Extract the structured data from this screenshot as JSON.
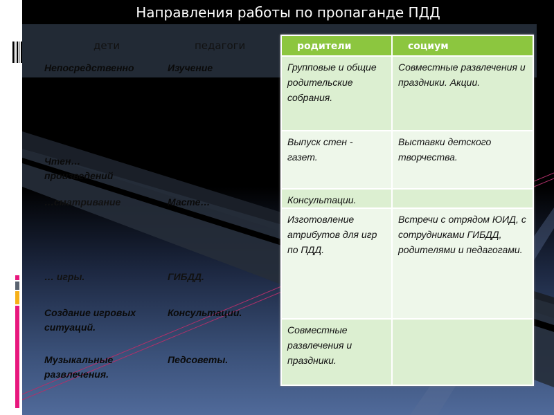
{
  "title": "Направления работы по пропаганде ПДД",
  "left_headers": [
    "дети",
    "педагоги"
  ],
  "left_rows": [
    {
      "children": "Непосредственно",
      "teachers": "Изучение"
    },
    {
      "children": "Чтен… произведений",
      "teachers": ""
    },
    {
      "children": "…сматривание",
      "teachers": "Масте…"
    },
    {
      "children": "… игры.",
      "teachers": "ГИБДД."
    },
    {
      "children": "Создание игровых ситуаций.",
      "teachers": "Консультации."
    },
    {
      "children": "Музыкальные развлечения.",
      "teachers": "Педсоветы."
    }
  ],
  "table": {
    "headers": [
      "родители",
      "социум"
    ],
    "rows": [
      [
        "Групповые и общие родительские собрания.",
        "Совместные развлечения и праздники. Акции."
      ],
      [
        "Выпуск стен - газет.",
        "Выставки детского творчества."
      ],
      [
        "Консультации.",
        ""
      ],
      [
        "Изготовление атрибутов для игр по ПДД.",
        "Встречи с отрядом ЮИД, с сотрудниками ГИБДД, родителями и педагогами."
      ],
      [
        "Совместные развлечения и праздники.",
        ""
      ]
    ],
    "header_color": "#8cc63f"
  },
  "decor": {
    "barcode_icon": "barcode",
    "side_bar_colors": [
      "#e8177d",
      "#5a6370",
      "#f6b018",
      "#e8177d"
    ]
  }
}
